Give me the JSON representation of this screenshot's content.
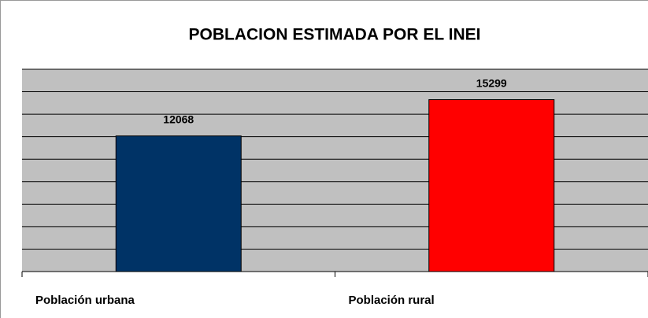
{
  "chart_data": {
    "type": "bar",
    "title": "POBLACION ESTIMADA POR EL INEI",
    "categories": [
      "Población urbana",
      "Población rural"
    ],
    "values": [
      12068,
      15299
    ],
    "colors": [
      "#003366",
      "#ff0000"
    ],
    "ylim": [
      0,
      18000
    ],
    "yticks": [
      0,
      2000,
      4000,
      6000,
      8000,
      10000,
      12000,
      14000,
      16000,
      18000
    ],
    "grid": true
  }
}
